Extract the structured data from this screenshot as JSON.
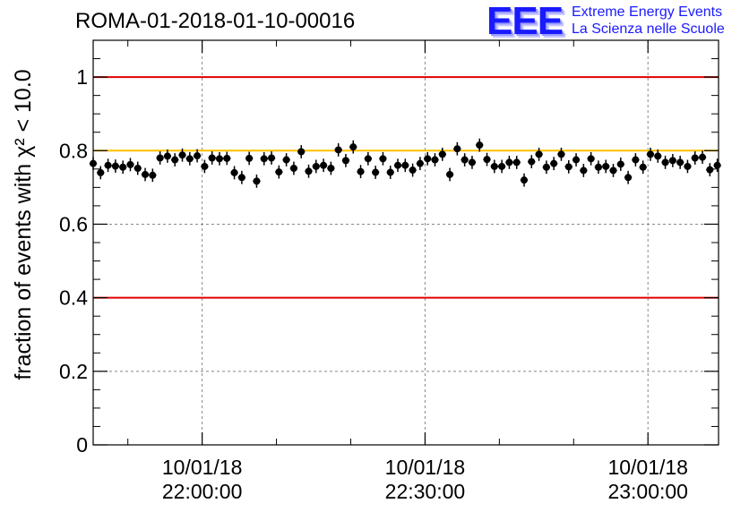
{
  "header": {
    "title": "ROMA-01-2018-01-10-00016",
    "logo_mark": "EEE",
    "logo_line1": "Extreme Energy Events",
    "logo_line2": "La Scienza nelle Scuole"
  },
  "chart_data": {
    "type": "scatter",
    "ylabel": "fraction of events with χ² < 10.0",
    "ylim": [
      0,
      1.1
    ],
    "yticks": [
      0,
      0.2,
      0.4,
      0.6,
      0.8,
      1
    ],
    "ytick_labels": [
      "0",
      "0.2",
      "0.4",
      "0.6",
      "0.8",
      "1"
    ],
    "x_range": [
      "21:45:20",
      "23:09:30"
    ],
    "xticks": [
      {
        "time": "22:00:00",
        "date": "10/01/18"
      },
      {
        "time": "22:30:00",
        "date": "10/01/18"
      },
      {
        "time": "23:00:00",
        "date": "10/01/18"
      }
    ],
    "grid": true,
    "reference_lines": [
      {
        "value": 1.0,
        "color": "#e00000"
      },
      {
        "value": 0.8,
        "color": "#ffc000"
      },
      {
        "value": 0.4,
        "color": "#e00000"
      }
    ],
    "series": [
      {
        "marker_color": "#000000",
        "error": 0.018,
        "x": [
          "21:45:20",
          "21:46:20",
          "21:47:20",
          "21:48:20",
          "21:49:20",
          "21:50:20",
          "21:51:20",
          "21:52:20",
          "21:53:20",
          "21:54:20",
          "21:55:20",
          "21:56:20",
          "21:57:20",
          "21:58:20",
          "21:59:20",
          "22:00:20",
          "22:01:20",
          "22:02:20",
          "22:03:20",
          "22:04:20",
          "22:05:20",
          "22:06:20",
          "22:07:20",
          "22:08:20",
          "22:09:20",
          "22:10:20",
          "22:11:20",
          "22:12:20",
          "22:13:20",
          "22:14:20",
          "22:15:20",
          "22:16:20",
          "22:17:20",
          "22:18:20",
          "22:19:20",
          "22:20:20",
          "22:21:20",
          "22:22:20",
          "22:23:20",
          "22:24:20",
          "22:25:20",
          "22:26:20",
          "22:27:20",
          "22:28:20",
          "22:29:20",
          "22:30:20",
          "22:31:20",
          "22:32:20",
          "22:33:20",
          "22:34:20",
          "22:35:20",
          "22:36:20",
          "22:37:20",
          "22:38:20",
          "22:39:20",
          "22:40:20",
          "22:41:20",
          "22:42:20",
          "22:43:20",
          "22:44:20",
          "22:45:20",
          "22:46:20",
          "22:47:20",
          "22:48:20",
          "22:49:20",
          "22:50:20",
          "22:51:20",
          "22:52:20",
          "22:53:20",
          "22:54:20",
          "22:55:20",
          "22:56:20",
          "22:57:20",
          "22:58:20",
          "22:59:20",
          "23:00:20",
          "23:01:20",
          "23:02:20",
          "23:03:20",
          "23:04:20",
          "23:05:20",
          "23:06:20",
          "23:07:20",
          "23:08:20",
          "23:09:20"
        ],
        "y": [
          0.765,
          0.74,
          0.76,
          0.758,
          0.755,
          0.762,
          0.752,
          0.735,
          0.733,
          0.78,
          0.785,
          0.775,
          0.788,
          0.778,
          0.786,
          0.757,
          0.78,
          0.778,
          0.779,
          0.74,
          0.727,
          0.779,
          0.717,
          0.778,
          0.78,
          0.742,
          0.775,
          0.752,
          0.797,
          0.744,
          0.757,
          0.76,
          0.752,
          0.802,
          0.773,
          0.81,
          0.743,
          0.778,
          0.741,
          0.778,
          0.741,
          0.76,
          0.76,
          0.747,
          0.765,
          0.778,
          0.775,
          0.79,
          0.735,
          0.805,
          0.775,
          0.768,
          0.815,
          0.776,
          0.757,
          0.757,
          0.768,
          0.768,
          0.72,
          0.77,
          0.79,
          0.755,
          0.765,
          0.79,
          0.756,
          0.775,
          0.746,
          0.778,
          0.755,
          0.757,
          0.746,
          0.763,
          0.727,
          0.775,
          0.755,
          0.79,
          0.785,
          0.768,
          0.773,
          0.768,
          0.757,
          0.78,
          0.782,
          0.748,
          0.76
        ]
      }
    ]
  }
}
